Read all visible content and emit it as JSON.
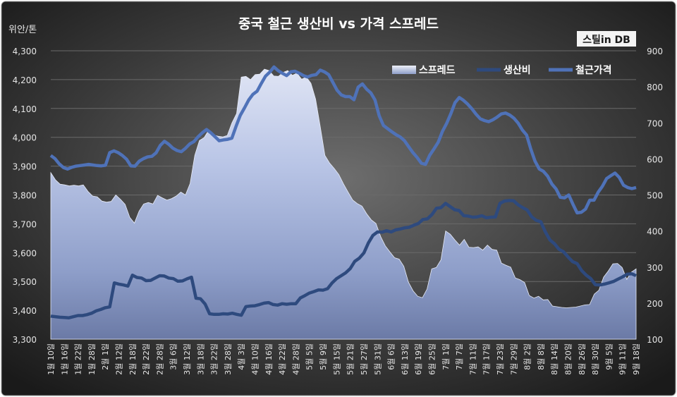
{
  "chart_data": {
    "type": "area",
    "title": "중국 철근 생산비 vs 가격 스프레드",
    "left_axis_unit": "위안/톤",
    "watermark": "스틸in DB",
    "left_axis": {
      "min": 3300,
      "max": 4300,
      "step": 100,
      "tick_labels": [
        "3,300",
        "3,400",
        "3,500",
        "3,600",
        "3,700",
        "3,800",
        "3,900",
        "4,000",
        "4,100",
        "4,200",
        "4,300"
      ]
    },
    "right_axis": {
      "min": 100,
      "max": 900,
      "step": 100,
      "tick_labels": [
        "100",
        "200",
        "300",
        "400",
        "500",
        "600",
        "700",
        "800",
        "900"
      ]
    },
    "legend": {
      "position": "top-right",
      "entries": [
        "스프레드",
        "생산비",
        "철근가격"
      ]
    },
    "x_tick_labels": [
      "1월 10일",
      "1월 16일",
      "1월 22일",
      "1월 28일",
      "2월 1일",
      "2월 12일",
      "2월 18일",
      "2월 22일",
      "2월 28일",
      "3월 6일",
      "3월 12일",
      "3월 18일",
      "3월 22일",
      "3월 28일",
      "4월 3일",
      "4월 10일",
      "4월 16일",
      "4월 22일",
      "4월 28일",
      "5월 5일",
      "5월 9일",
      "5월 15일",
      "5월 21일",
      "5월 27일",
      "5월 31일",
      "6월 6일",
      "6월 13일",
      "6월 19일",
      "6월 25일",
      "7월 1일",
      "7월 7일",
      "7월 11일",
      "7월 17일",
      "7월 23일",
      "7월 29일",
      "8월 2일",
      "8월 8일",
      "8월 14일",
      "8월 20일",
      "8월 26일",
      "8월 30일",
      "9월 5일",
      "9월 11일",
      "9월 18일"
    ],
    "series": [
      {
        "name": "스프레드",
        "axis": "right",
        "kind": "area",
        "values": [
          562,
          542,
          530,
          528,
          525,
          527,
          525,
          528,
          510,
          497,
          495,
          483,
          480,
          482,
          500,
          488,
          474,
          438,
          422,
          455,
          475,
          479,
          475,
          499,
          492,
          486,
          490,
          497,
          508,
          500,
          532,
          610,
          651,
          659,
          680,
          667,
          663,
          661,
          665,
          700,
          726,
          827,
          829,
          820,
          834,
          835,
          849,
          845,
          830,
          829,
          840,
          845,
          832,
          838,
          821,
          827,
          810,
          766,
          690,
          610,
          589,
          574,
          557,
          531,
          508,
          486,
          476,
          469,
          448,
          431,
          421,
          385,
          359,
          342,
          326,
          322,
          302,
          258,
          234,
          219,
          215,
          239,
          295,
          299,
          320,
          400,
          391,
          375,
          361,
          377,
          355,
          354,
          356,
          347,
          361,
          349,
          347,
          311,
          305,
          300,
          270,
          265,
          257,
          221,
          214,
          219,
          209,
          210,
          192,
          190,
          188,
          187,
          188,
          189,
          192,
          195,
          196,
          225,
          236,
          272,
          289,
          309,
          310,
          299,
          266,
          286,
          295
        ]
      },
      {
        "name": "생산비",
        "axis": "left",
        "kind": "line",
        "values": [
          3380,
          3378,
          3376,
          3375,
          3374,
          3378,
          3382,
          3382,
          3385,
          3390,
          3398,
          3403,
          3409,
          3412,
          3495,
          3491,
          3488,
          3484,
          3522,
          3514,
          3512,
          3503,
          3504,
          3512,
          3520,
          3519,
          3512,
          3510,
          3501,
          3502,
          3509,
          3515,
          3442,
          3440,
          3422,
          3388,
          3386,
          3386,
          3388,
          3387,
          3390,
          3386,
          3383,
          3413,
          3415,
          3416,
          3420,
          3425,
          3427,
          3420,
          3418,
          3423,
          3421,
          3423,
          3423,
          3443,
          3451,
          3460,
          3465,
          3471,
          3470,
          3475,
          3495,
          3510,
          3520,
          3530,
          3545,
          3570,
          3581,
          3599,
          3634,
          3660,
          3672,
          3671,
          3676,
          3672,
          3679,
          3682,
          3686,
          3688,
          3695,
          3701,
          3715,
          3717,
          3732,
          3754,
          3756,
          3771,
          3760,
          3749,
          3746,
          3728,
          3727,
          3723,
          3724,
          3728,
          3721,
          3723,
          3724,
          3771,
          3779,
          3781,
          3780,
          3766,
          3756,
          3748,
          3724,
          3712,
          3707,
          3672,
          3644,
          3631,
          3612,
          3603,
          3585,
          3569,
          3562,
          3538,
          3522,
          3510,
          3489,
          3488,
          3491,
          3495,
          3500,
          3508,
          3516,
          3525,
          3527,
          3520
        ]
      },
      {
        "name": "철근가격",
        "axis": "left",
        "kind": "line",
        "values": [
          3937,
          3926,
          3908,
          3895,
          3890,
          3896,
          3900,
          3902,
          3904,
          3906,
          3904,
          3902,
          3901,
          3903,
          3947,
          3953,
          3947,
          3937,
          3924,
          3901,
          3900,
          3917,
          3926,
          3932,
          3934,
          3946,
          3972,
          3986,
          3976,
          3962,
          3954,
          3950,
          3962,
          3977,
          3985,
          4002,
          4016,
          4027,
          4016,
          4002,
          3988,
          3991,
          3993,
          3997,
          4038,
          4076,
          4102,
          4129,
          4149,
          4160,
          4187,
          4212,
          4226,
          4244,
          4231,
          4222,
          4214,
          4227,
          4229,
          4222,
          4214,
          4209,
          4215,
          4217,
          4233,
          4227,
          4217,
          4190,
          4163,
          4147,
          4141,
          4141,
          4130,
          4174,
          4185,
          4167,
          4154,
          4129,
          4074,
          4041,
          4030,
          4019,
          4009,
          4001,
          3988,
          3967,
          3947,
          3930,
          3910,
          3906,
          3938,
          3960,
          3983,
          4020,
          4048,
          4082,
          4120,
          4138,
          4128,
          4115,
          4099,
          4080,
          4064,
          4058,
          4054,
          4061,
          4070,
          4081,
          4084,
          4077,
          4066,
          4049,
          4025,
          4008,
          3959,
          3917,
          3890,
          3882,
          3865,
          3838,
          3821,
          3792,
          3790,
          3800,
          3768,
          3738,
          3740,
          3751,
          3782,
          3782,
          3810,
          3830,
          3857,
          3867,
          3876,
          3861,
          3834,
          3826,
          3822,
          3826
        ]
      }
    ]
  }
}
